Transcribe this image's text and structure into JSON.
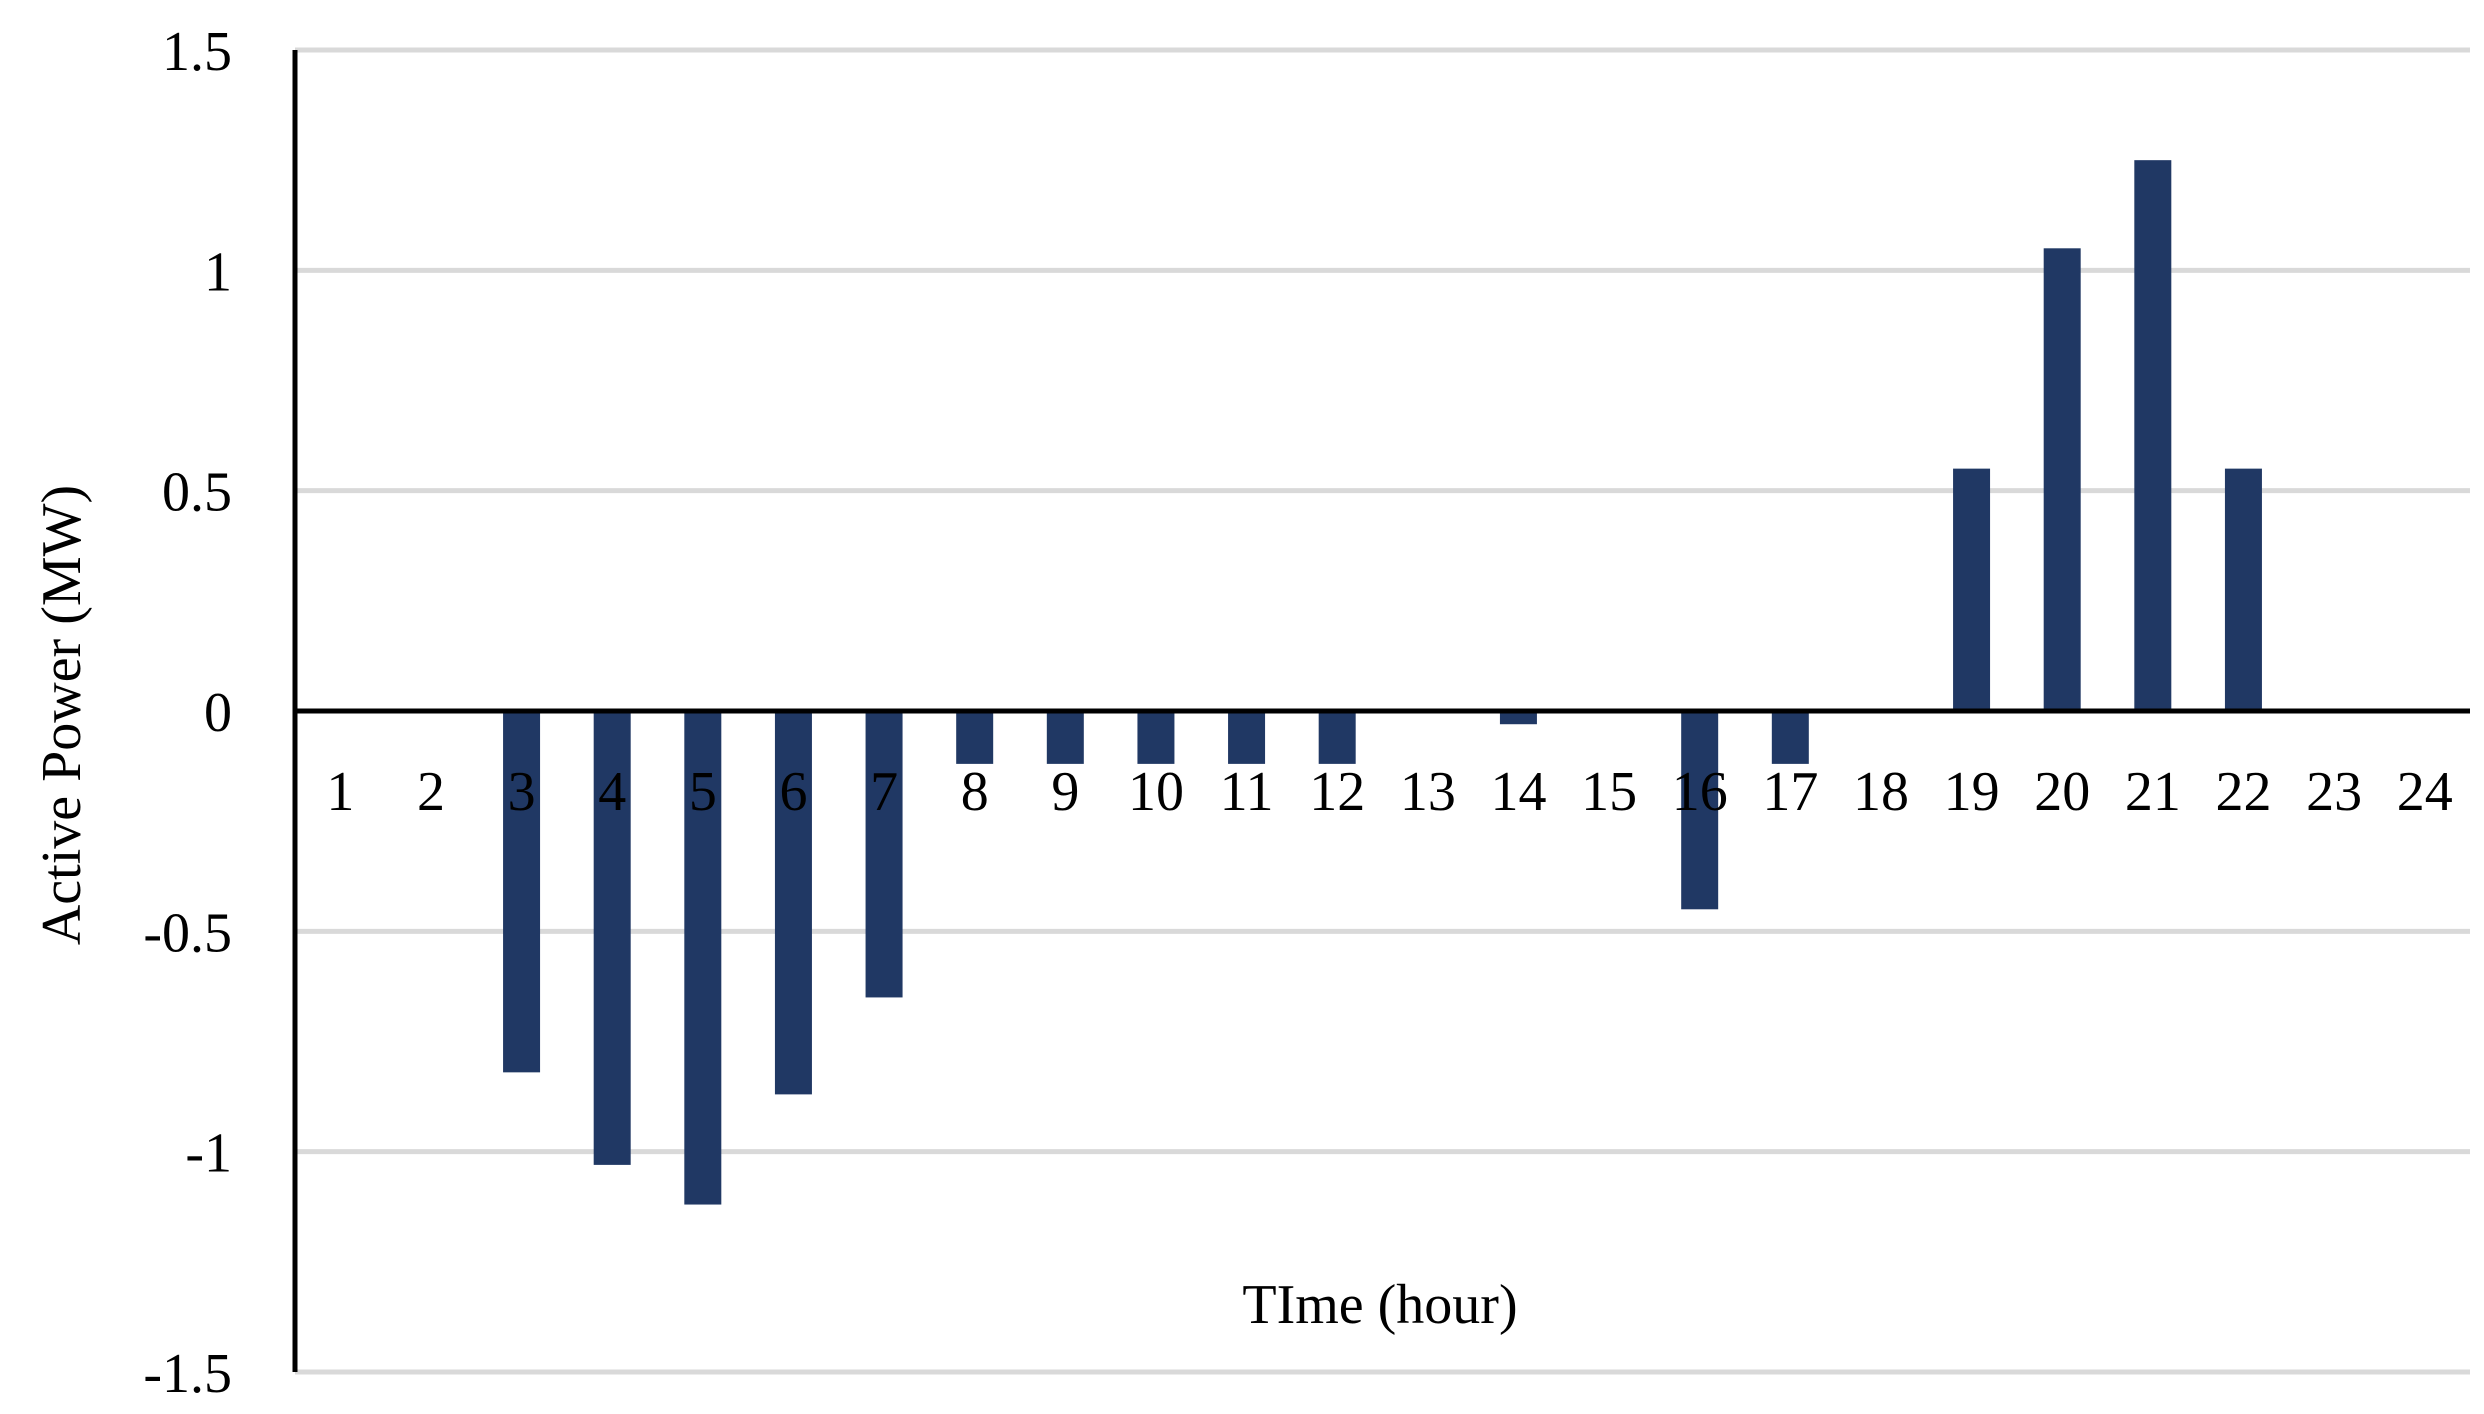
{
  "chart_data": {
    "type": "bar",
    "title": "",
    "xlabel": "TIme (hour)",
    "ylabel": "Active Power (MW)",
    "ylim": [
      -1.5,
      1.5
    ],
    "yticks": [
      1.5,
      1,
      0.5,
      0,
      -0.5,
      -1,
      -1.5
    ],
    "ytick_labels": [
      "1.5",
      "1",
      "0.5",
      "0",
      "-0.5",
      "-1",
      "-1.5"
    ],
    "categories": [
      "1",
      "2",
      "3",
      "4",
      "5",
      "6",
      "7",
      "8",
      "9",
      "10",
      "11",
      "12",
      "13",
      "14",
      "15",
      "16",
      "17",
      "18",
      "19",
      "20",
      "21",
      "22",
      "23",
      "24"
    ],
    "values": [
      0,
      0,
      -0.82,
      -1.03,
      -1.12,
      -0.87,
      -0.65,
      -0.12,
      -0.12,
      -0.12,
      -0.12,
      -0.12,
      0,
      -0.03,
      0,
      -0.45,
      -0.12,
      0,
      0.55,
      1.05,
      1.25,
      0.55,
      0,
      0
    ],
    "grid": true,
    "legend": "none",
    "colors": {
      "bar": "#203864",
      "grid": "#d9d9d9",
      "axis": "#000000"
    }
  }
}
